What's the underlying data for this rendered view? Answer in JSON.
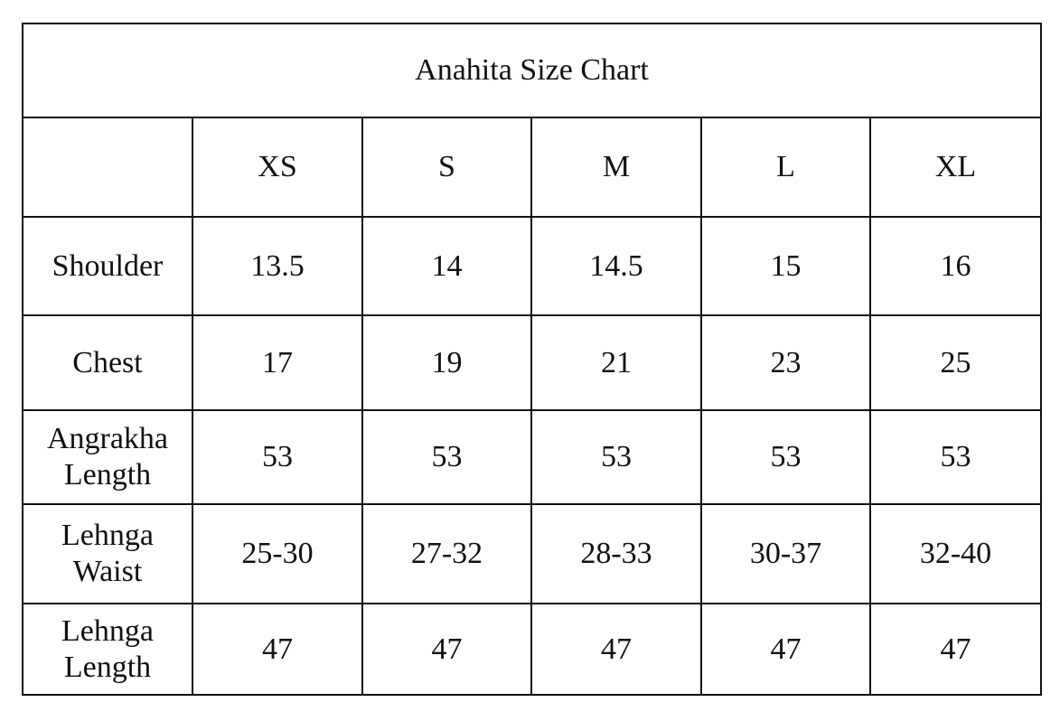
{
  "table": {
    "title": "Anahita Size Chart",
    "columns": [
      "XS",
      "S",
      "M",
      "L",
      "XL"
    ],
    "rows": [
      {
        "label": "Shoulder",
        "values": [
          13.5,
          14,
          14.5,
          15,
          16
        ]
      },
      {
        "label": "Chest",
        "values": [
          17,
          19,
          21,
          23,
          25
        ]
      },
      {
        "label": "Angrakha Length",
        "values": [
          53,
          53,
          53,
          53,
          53
        ]
      },
      {
        "label": "Lehnga Waist",
        "values": [
          "25-30",
          "27-32",
          "28-33",
          "30-37",
          "32-40"
        ]
      },
      {
        "label": "Lehnga Length",
        "values": [
          47,
          47,
          47,
          47,
          47
        ]
      }
    ]
  }
}
